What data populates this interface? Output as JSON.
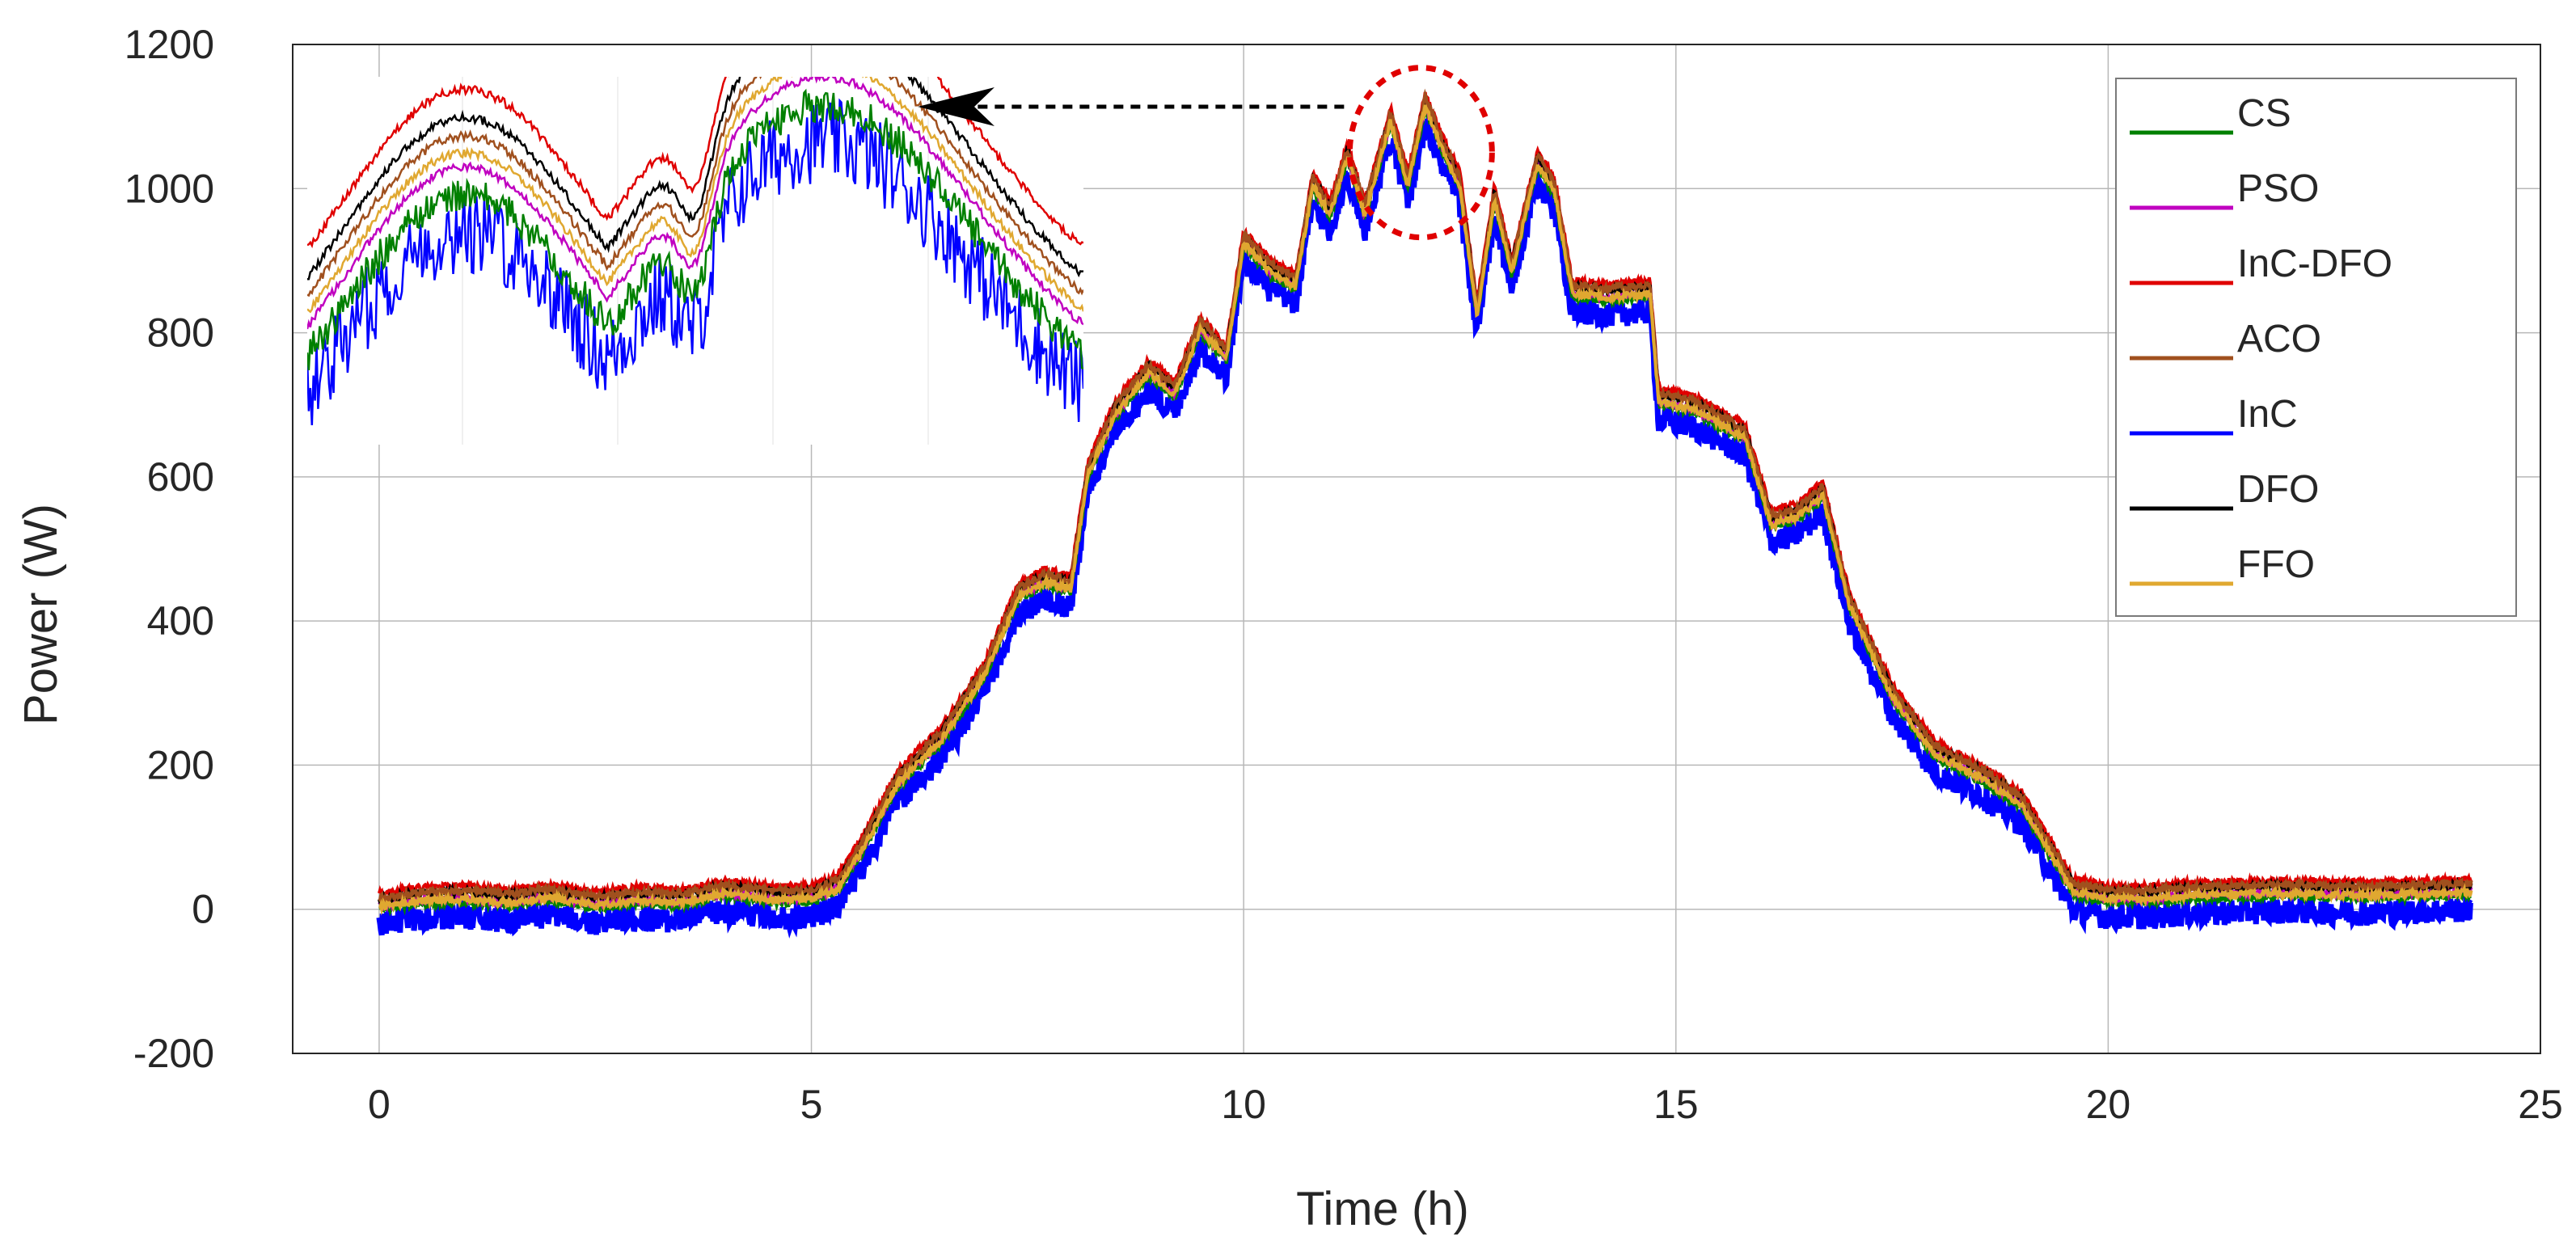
{
  "chart_data": {
    "type": "line",
    "title": "",
    "xlabel": "Time (h)",
    "ylabel": "Power (W)",
    "xlim": [
      -1,
      25
    ],
    "ylim": [
      -200,
      1200
    ],
    "xticks": [
      0,
      5,
      10,
      15,
      20,
      25
    ],
    "xtick_labels": [
      "0",
      "5",
      "10",
      "15",
      "20",
      "25"
    ],
    "yticks": [
      -200,
      0,
      200,
      400,
      600,
      800,
      1000,
      1200
    ],
    "ytick_labels": [
      "-200",
      "0",
      "200",
      "400",
      "600",
      "800",
      "1000",
      "1200"
    ],
    "grid": true,
    "legend_position": "top-right",
    "base_profile": {
      "x": [
        0,
        0.5,
        1,
        1.5,
        2,
        2.5,
        3,
        3.5,
        4,
        4.5,
        5,
        5.3,
        5.6,
        6,
        6.5,
        7,
        7.4,
        7.7,
        8,
        8.2,
        8.5,
        8.9,
        9.2,
        9.5,
        9.8,
        10,
        10.3,
        10.6,
        10.8,
        11.0,
        11.2,
        11.4,
        11.7,
        11.9,
        12.1,
        12.3,
        12.5,
        12.7,
        12.9,
        13.1,
        13.4,
        13.6,
        13.8,
        14.2,
        14.7,
        14.8,
        15.2,
        15.5,
        15.8,
        16.1,
        16.4,
        16.7,
        17,
        17.5,
        18,
        18.5,
        19,
        19.3,
        19.6,
        20,
        20.5,
        21,
        22,
        23,
        24.2
      ],
      "y": [
        0,
        8,
        10,
        5,
        12,
        2,
        8,
        5,
        18,
        10,
        10,
        25,
        80,
        170,
        230,
        320,
        430,
        450,
        440,
        600,
        680,
        740,
        710,
        800,
        760,
        920,
        880,
        860,
        1000,
        960,
        1040,
        960,
        1090,
        1000,
        1110,
        1050,
        1000,
        820,
        980,
        880,
        1030,
        990,
        850,
        845,
        850,
        700,
        690,
        670,
        650,
        530,
        540,
        570,
        420,
        290,
        210,
        180,
        140,
        80,
        20,
        10,
        10,
        15,
        18,
        15,
        20
      ]
    },
    "series": [
      {
        "name": "CS",
        "color": "#008000",
        "offset": 0
      },
      {
        "name": "PSO",
        "color": "#c000c0",
        "offset": 6
      },
      {
        "name": "InC-DFO",
        "color": "#e00000",
        "offset": 22
      },
      {
        "name": "ACO",
        "color": "#a0501e",
        "offset": 16
      },
      {
        "name": "InC",
        "color": "#0000ff",
        "offset": -20
      },
      {
        "name": "DFO",
        "color": "#000000",
        "offset": 14
      },
      {
        "name": "FFO",
        "color": "#e0a830",
        "offset": 4
      }
    ],
    "annotation": {
      "type": "zoom-inset",
      "highlight_x_range": [
        11.5,
        12.6
      ],
      "highlight_y_range": [
        970,
        1140
      ],
      "inset_x_range": [
        11.5,
        12.6
      ],
      "description": "dashed red ellipse around peak, dashed arrow pointing to magnified inset"
    }
  }
}
